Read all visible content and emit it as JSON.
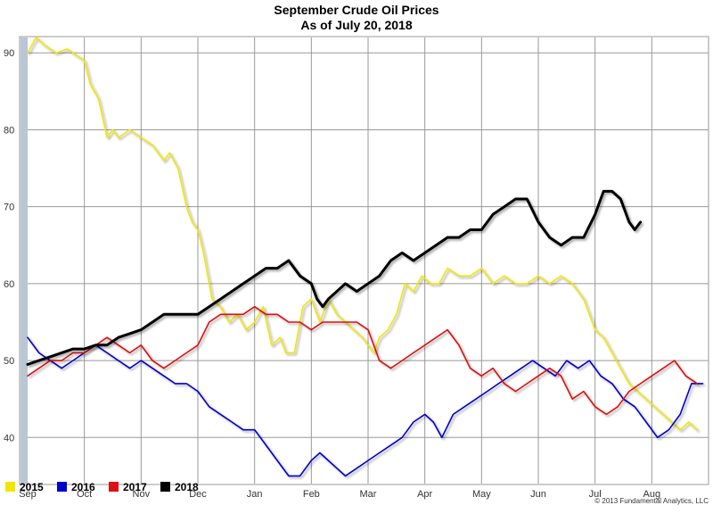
{
  "chart_data": {
    "type": "line",
    "title": "September Crude Oil Prices",
    "subtitle": "As of July 20, 2018",
    "credit": "© 2013 Fundamental Analytics, LLC",
    "x_ticks": [
      "Sep",
      "Oct",
      "Nov",
      "Dec",
      "Jan",
      "Feb",
      "Mar",
      "Apr",
      "May",
      "Jun",
      "Jul",
      "Aug"
    ],
    "y_ticks": [
      40,
      50,
      60,
      70,
      80,
      90
    ],
    "ylim": [
      34,
      92
    ],
    "xlim": [
      0,
      12
    ],
    "grid": true,
    "legend_position": "bottom-left",
    "series": [
      {
        "name": "2015",
        "color": "#f2e600",
        "x": [
          0,
          0.15,
          0.3,
          0.5,
          0.7,
          0.9,
          1.0,
          1.1,
          1.25,
          1.4,
          1.5,
          1.6,
          1.8,
          2.0,
          2.2,
          2.4,
          2.5,
          2.65,
          2.8,
          2.9,
          3.0,
          3.1,
          3.25,
          3.4,
          3.55,
          3.7,
          3.85,
          4.0,
          4.15,
          4.3,
          4.45,
          4.55,
          4.7,
          4.85,
          5.0,
          5.15,
          5.3,
          5.45,
          5.6,
          5.75,
          5.9,
          6.0,
          6.1,
          6.2,
          6.35,
          6.5,
          6.65,
          6.8,
          6.95,
          7.1,
          7.25,
          7.4,
          7.6,
          7.8,
          8.0,
          8.2,
          8.4,
          8.6,
          8.8,
          9.0,
          9.2,
          9.4,
          9.6,
          9.8,
          10.0,
          10.15,
          10.3,
          10.45,
          10.6,
          10.75,
          10.9,
          11.05,
          11.2,
          11.35,
          11.5,
          11.65,
          11.8
        ],
        "values": [
          90,
          92,
          91,
          90,
          90.5,
          89.5,
          89,
          86,
          84,
          79,
          80,
          79,
          80,
          79,
          78,
          76,
          77,
          75,
          70,
          68,
          67,
          64,
          58,
          57,
          55,
          56,
          54,
          55,
          57,
          52,
          53,
          51,
          51,
          57,
          58,
          55,
          58,
          56,
          55,
          54,
          53,
          52,
          51,
          53,
          54,
          56,
          60,
          59,
          61,
          60,
          60,
          62,
          61,
          61,
          62,
          60,
          61,
          60,
          60,
          61,
          60,
          61,
          60,
          58,
          54,
          53,
          51,
          49,
          47,
          46,
          45,
          44,
          43,
          42,
          41,
          42,
          41
        ]
      },
      {
        "name": "2016",
        "color": "#0000cc",
        "x": [
          0,
          0.2,
          0.4,
          0.6,
          0.8,
          1.0,
          1.2,
          1.4,
          1.6,
          1.8,
          2.0,
          2.2,
          2.4,
          2.6,
          2.8,
          3.0,
          3.2,
          3.4,
          3.6,
          3.8,
          4.0,
          4.2,
          4.4,
          4.6,
          4.8,
          5.0,
          5.15,
          5.3,
          5.45,
          5.6,
          5.8,
          6.0,
          6.2,
          6.4,
          6.6,
          6.8,
          7.0,
          7.15,
          7.3,
          7.5,
          7.7,
          7.9,
          8.1,
          8.3,
          8.5,
          8.7,
          8.9,
          9.1,
          9.3,
          9.5,
          9.7,
          9.9,
          10.1,
          10.3,
          10.5,
          10.7,
          10.9,
          11.1,
          11.3,
          11.5,
          11.7,
          11.9
        ],
        "values": [
          53,
          51,
          50,
          49,
          50,
          51,
          52,
          51,
          50,
          49,
          50,
          49,
          48,
          47,
          47,
          46,
          44,
          43,
          42,
          41,
          41,
          39,
          37,
          35,
          35,
          37,
          38,
          37,
          36,
          35,
          36,
          37,
          38,
          39,
          40,
          42,
          43,
          42,
          40,
          43,
          44,
          45,
          46,
          47,
          48,
          49,
          50,
          49,
          48,
          50,
          49,
          50,
          48,
          47,
          45,
          44,
          42,
          40,
          41,
          43,
          47,
          47
        ]
      },
      {
        "name": "2017",
        "color": "#dd1111",
        "x": [
          0,
          0.2,
          0.4,
          0.6,
          0.8,
          1.0,
          1.2,
          1.4,
          1.6,
          1.8,
          2.0,
          2.2,
          2.4,
          2.6,
          2.8,
          3.0,
          3.2,
          3.4,
          3.6,
          3.8,
          4.0,
          4.2,
          4.4,
          4.6,
          4.8,
          5.0,
          5.2,
          5.4,
          5.6,
          5.8,
          6.0,
          6.2,
          6.4,
          6.6,
          6.8,
          7.0,
          7.2,
          7.4,
          7.6,
          7.8,
          8.0,
          8.2,
          8.4,
          8.6,
          8.8,
          9.0,
          9.2,
          9.4,
          9.6,
          9.8,
          10.0,
          10.2,
          10.4,
          10.6,
          10.8,
          11.0,
          11.2,
          11.4,
          11.6,
          11.8
        ],
        "values": [
          48,
          49,
          50,
          50,
          51,
          51,
          52,
          53,
          52,
          51,
          52,
          50,
          49,
          50,
          51,
          52,
          55,
          56,
          56,
          56,
          57,
          56,
          56,
          55,
          55,
          54,
          55,
          55,
          55,
          55,
          54,
          50,
          49,
          50,
          51,
          52,
          53,
          54,
          52,
          49,
          48,
          49,
          47,
          46,
          47,
          48,
          49,
          48,
          45,
          46,
          44,
          43,
          44,
          46,
          47,
          48,
          49,
          50,
          48,
          47
        ]
      },
      {
        "name": "2018",
        "color": "#000000",
        "x": [
          0,
          0.2,
          0.4,
          0.6,
          0.8,
          1.0,
          1.2,
          1.4,
          1.6,
          1.8,
          2.0,
          2.2,
          2.4,
          2.6,
          2.8,
          3.0,
          3.2,
          3.4,
          3.6,
          3.8,
          4.0,
          4.2,
          4.4,
          4.6,
          4.8,
          5.0,
          5.1,
          5.2,
          5.3,
          5.45,
          5.6,
          5.8,
          6.0,
          6.2,
          6.4,
          6.6,
          6.8,
          7.0,
          7.2,
          7.4,
          7.6,
          7.8,
          8.0,
          8.2,
          8.4,
          8.6,
          8.8,
          9.0,
          9.2,
          9.4,
          9.6,
          9.8,
          10.0,
          10.15,
          10.3,
          10.45,
          10.6,
          10.7,
          10.8
        ],
        "values": [
          49.5,
          50,
          50.5,
          51,
          51.5,
          51.5,
          52,
          52,
          53,
          53.5,
          54,
          55,
          56,
          56,
          56,
          56,
          57,
          58,
          59,
          60,
          61,
          62,
          62,
          63,
          61,
          60,
          58,
          57,
          58,
          59,
          60,
          59,
          60,
          61,
          63,
          64,
          63,
          64,
          65,
          66,
          66,
          67,
          67,
          69,
          70,
          71,
          71,
          68,
          66,
          65,
          66,
          66,
          69,
          72,
          72,
          71,
          68,
          67,
          68
        ]
      }
    ]
  }
}
